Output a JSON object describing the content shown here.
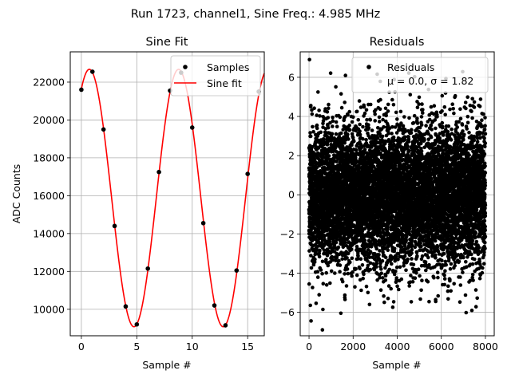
{
  "figure_title": "Run 1723, channel1, Sine Freq.: 4.985 MHz",
  "chart_data": [
    {
      "type": "line",
      "title": "Sine Fit",
      "xlabel": "Sample #",
      "ylabel": "ADC Counts",
      "xlim": [
        -1,
        16.5
      ],
      "ylim": [
        8600,
        23600
      ],
      "xticks": [
        0,
        5,
        10,
        15
      ],
      "yticks": [
        10000,
        12000,
        14000,
        16000,
        18000,
        20000,
        22000
      ],
      "grid": true,
      "legend_position": "top-right",
      "series": [
        {
          "name": "Samples",
          "kind": "scatter",
          "color": "#000000",
          "x": [
            0,
            1,
            2,
            3,
            4,
            5,
            6,
            7,
            8,
            9,
            10,
            11,
            12,
            13,
            14,
            15,
            16
          ],
          "y": [
            21600,
            22550,
            19500,
            14400,
            10150,
            9200,
            12150,
            17250,
            21550,
            22500,
            19600,
            14550,
            10200,
            9150,
            12050,
            17150,
            21500
          ]
        },
        {
          "name": "Sine fit",
          "kind": "line",
          "color": "#ff0000",
          "model": {
            "offset": 15875,
            "amplitude": 6800,
            "period": 8.05,
            "x_at_max": 0.72
          }
        }
      ]
    },
    {
      "type": "scatter",
      "title": "Residuals",
      "xlabel": "Sample #",
      "ylabel": "",
      "xlim": [
        -400,
        8400
      ],
      "ylim": [
        -7.2,
        7.3
      ],
      "xticks": [
        0,
        2000,
        4000,
        6000,
        8000
      ],
      "yticks": [
        -6,
        -4,
        -2,
        0,
        2,
        4,
        6
      ],
      "grid": true,
      "legend_position": "top-right",
      "series": [
        {
          "name": "Residuals",
          "color": "#000000",
          "n_points": 8000,
          "mu": 0.0,
          "sigma": 1.82
        }
      ],
      "legend_stats": "μ = 0.0, σ = 1.82"
    }
  ]
}
